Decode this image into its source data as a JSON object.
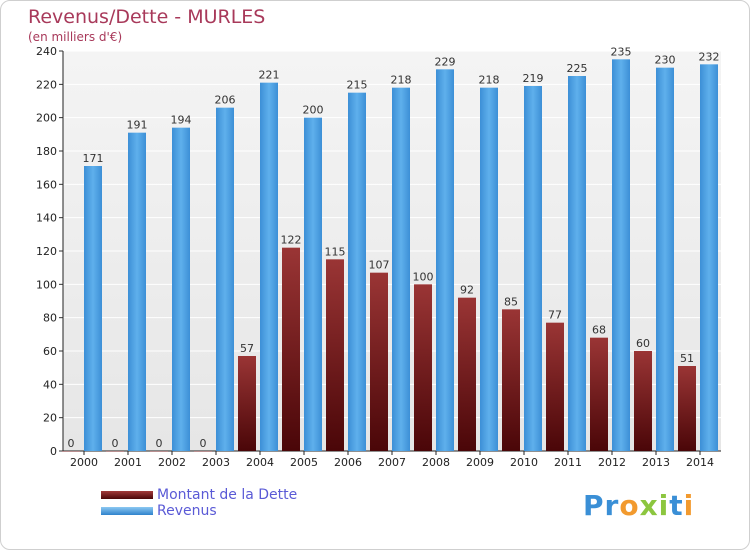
{
  "header": {
    "title": "Revenus/Dette - MURLES",
    "subtitle": "(en milliers d'€)"
  },
  "chart_data": {
    "type": "bar",
    "title": "Revenus/Dette - MURLES",
    "ylabel": "(en milliers d'€)",
    "xlabel": "",
    "ylim": [
      0,
      240
    ],
    "yticks": [
      0,
      20,
      40,
      60,
      80,
      100,
      120,
      140,
      160,
      180,
      200,
      220,
      240
    ],
    "grid": true,
    "legend_position": "bottom-left",
    "categories": [
      "2000",
      "2001",
      "2002",
      "2003",
      "2004",
      "2005",
      "2006",
      "2007",
      "2008",
      "2009",
      "2010",
      "2011",
      "2012",
      "2013",
      "2014"
    ],
    "series": [
      {
        "name": "Montant de la Dette",
        "color": "#7b1c20",
        "values": [
          0,
          0,
          0,
          0,
          57,
          122,
          115,
          107,
          100,
          92,
          85,
          77,
          68,
          60,
          51
        ]
      },
      {
        "name": "Revenus",
        "color": "#55a6e6",
        "values": [
          171,
          191,
          194,
          206,
          221,
          200,
          215,
          218,
          229,
          218,
          219,
          225,
          235,
          230,
          232
        ]
      }
    ]
  },
  "legend": {
    "debt_label": "Montant de la Dette",
    "revenue_label": "Revenus"
  },
  "logo": {
    "letters": [
      "P",
      "r",
      "o",
      "x",
      "i",
      "t",
      "i"
    ],
    "colors": [
      "#3a8fd6",
      "#3a8fd6",
      "#f29a2e",
      "#8cc63f",
      "#8cc63f",
      "#3a8fd6",
      "#f29a2e"
    ]
  }
}
